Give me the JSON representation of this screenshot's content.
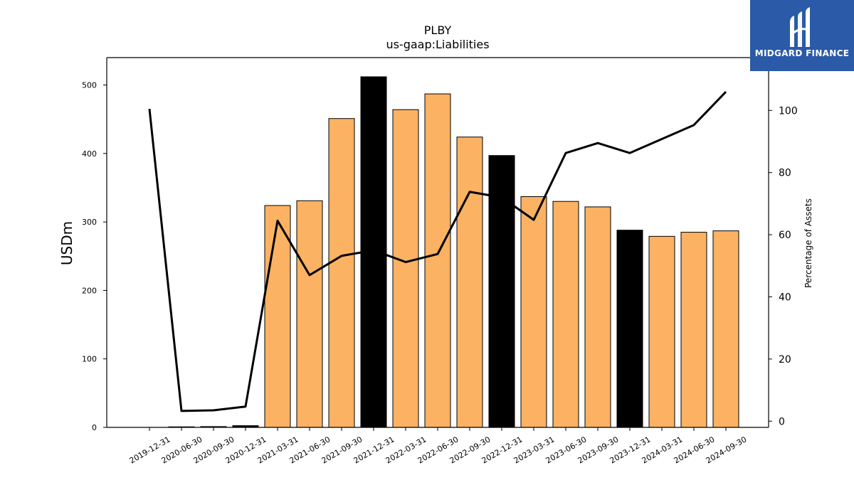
{
  "chart_data": {
    "type": "bar",
    "title": "PLBY",
    "subtitle": "us-gaap:Liabilities",
    "ylabel": "USDm",
    "ylabel_right": "Percentage of Assets",
    "ylim": [
      0,
      540
    ],
    "ylim_right": [
      -2,
      117
    ],
    "yticks": [
      0,
      100,
      200,
      300,
      400,
      500
    ],
    "yticks_right": [
      0,
      20,
      40,
      60,
      80,
      100
    ],
    "categories": [
      "2019-12-31",
      "2020-06-30",
      "2020-09-30",
      "2020-12-31",
      "2021-03-31",
      "2021-06-30",
      "2021-09-30",
      "2021-12-31",
      "2022-03-31",
      "2022-06-30",
      "2022-09-30",
      "2022-12-31",
      "2023-03-31",
      "2023-06-30",
      "2023-09-30",
      "2023-12-31",
      "2024-03-31",
      "2024-06-30",
      "2024-09-30"
    ],
    "series": [
      {
        "type": "bar",
        "values": [
          0,
          0.8,
          1.2,
          2.5,
          324,
          331,
          451,
          512,
          464,
          487,
          424,
          397,
          337,
          330,
          322,
          288,
          279,
          285,
          287
        ],
        "colors": [
          "#fbb262",
          "#fbb262",
          "#fbb262",
          "#000000",
          "#fbb262",
          "#fbb262",
          "#fbb262",
          "#000000",
          "#fbb262",
          "#fbb262",
          "#fbb262",
          "#000000",
          "#fbb262",
          "#fbb262",
          "#fbb262",
          "#000000",
          "#fbb262",
          "#fbb262",
          "#fbb262"
        ]
      },
      {
        "type": "line",
        "axis": "right",
        "values": [
          100.5,
          3.3,
          3.5,
          4.7,
          64.5,
          47,
          53.2,
          55,
          51.2,
          53.8,
          73.8,
          72,
          64.8,
          86.3,
          89.5,
          86.3,
          90.8,
          95.3,
          106
        ]
      }
    ],
    "grid": false,
    "legend": "none",
    "bar_color": "#fbb262",
    "highlight_color": "#000000"
  },
  "logo": {
    "text": "MIDGARD FINANCE",
    "background": "#2a5aa8"
  }
}
